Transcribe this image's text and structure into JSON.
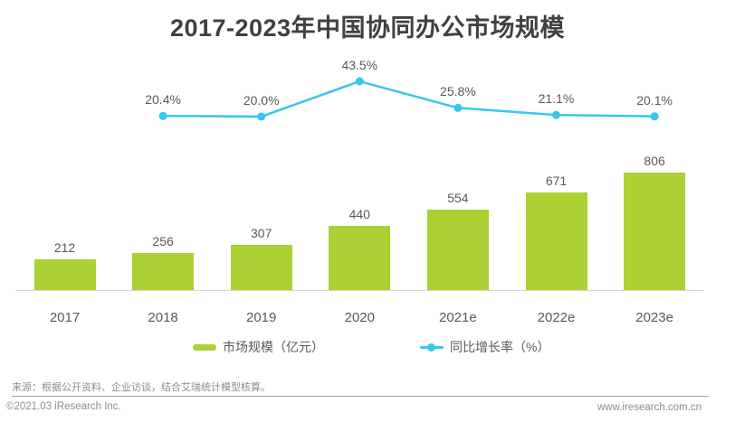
{
  "page": {
    "title": "2017-2023年中国协同办公市场规模"
  },
  "chart_data": {
    "type": "bar",
    "title": "2017-2023年中国协同办公市场规模",
    "categories": [
      "2017",
      "2018",
      "2019",
      "2020",
      "2021e",
      "2022e",
      "2023e"
    ],
    "series": [
      {
        "name": "市场规模（亿元）",
        "chart": "bar",
        "values": [
          212,
          256,
          307,
          440,
          554,
          671,
          806
        ],
        "value_labels": [
          "212",
          "256",
          "307",
          "440",
          "554",
          "671",
          "806"
        ]
      },
      {
        "name": "同比增长率（%）",
        "chart": "line",
        "values": [
          null,
          20.4,
          20.0,
          43.5,
          25.8,
          21.1,
          20.1
        ],
        "point_labels": [
          "",
          "20.4%",
          "20.0%",
          "43.5%",
          "25.8%",
          "21.1%",
          "20.1%"
        ]
      }
    ],
    "xlabel": "",
    "ylabel": "",
    "grid": false,
    "value_axis_visible": false,
    "data_labels_shown": true,
    "legend_position": "bottom"
  },
  "legend": {
    "bar_label": "市场规模（亿元）",
    "line_label": "同比增长率（%）"
  },
  "footer": {
    "source": "来源：根据公开资料、企业访谈，结合艾瑞统计模型核算。",
    "copyright": "©2021.03 iResearch Inc.",
    "website": "www.iresearch.com.cn"
  },
  "colors": {
    "bar": "#abd134",
    "line": "#36c6f0",
    "title_text": "#404040",
    "label_text": "#595959",
    "footer_text": "#8c8c8c",
    "axis_line": "#d6d6d6"
  }
}
